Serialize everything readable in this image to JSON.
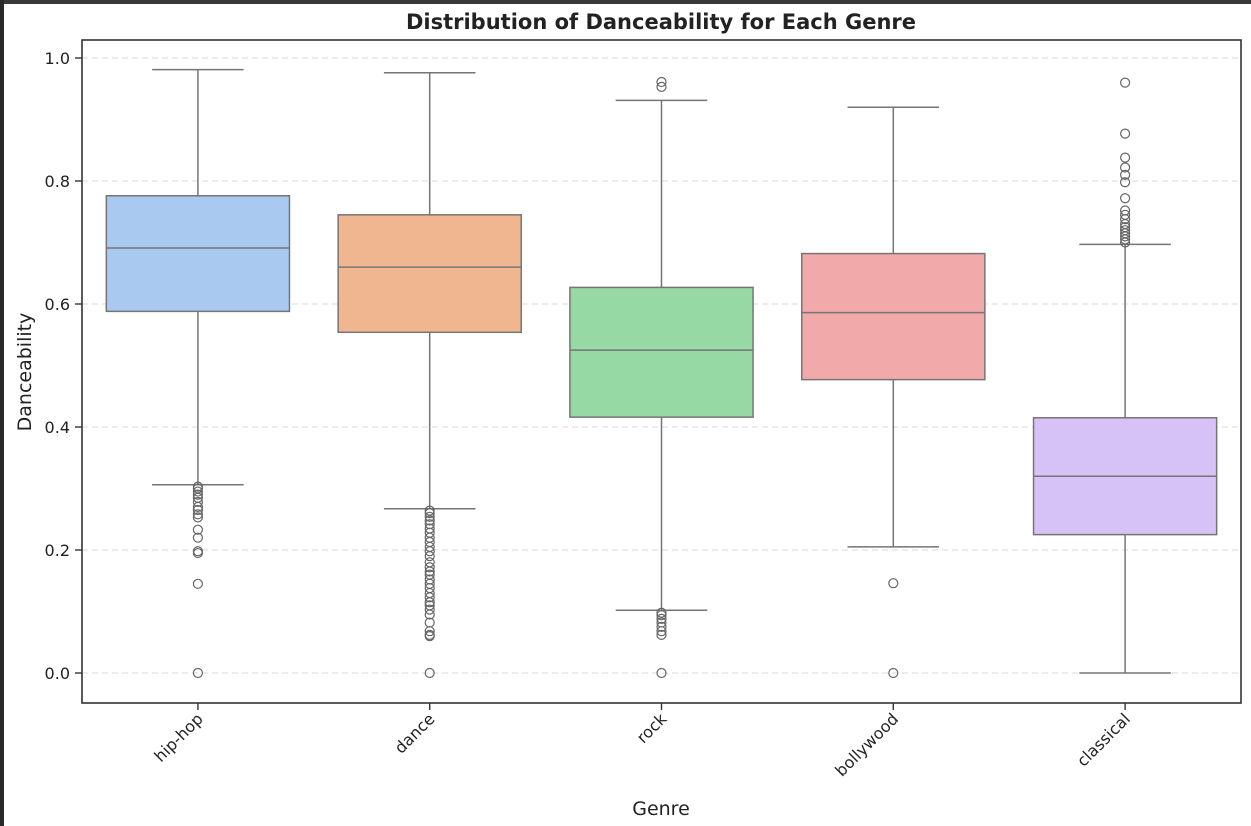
{
  "chart_data": {
    "type": "box",
    "title": "Distribution of Danceability for Each Genre",
    "xlabel": "Genre",
    "ylabel": "Danceability",
    "ylim": [
      -0.05,
      1.03
    ],
    "yticks": [
      0.0,
      0.2,
      0.4,
      0.6,
      0.8,
      1.0
    ],
    "ytick_labels": [
      "0.0",
      "0.2",
      "0.4",
      "0.6",
      "0.8",
      "1.0"
    ],
    "grid": "y-dashed",
    "categories": [
      "hip-hop",
      "dance",
      "rock",
      "bollywood",
      "classical"
    ],
    "colors": [
      "#a9c9f0",
      "#f0b690",
      "#97d9a5",
      "#f2a9a9",
      "#d6c2f7"
    ],
    "boxes": [
      {
        "category": "hip-hop",
        "whisker_low": 0.306,
        "q1": 0.588,
        "median": 0.691,
        "q3": 0.776,
        "whisker_high": 0.981,
        "fliers": [
          0.0,
          0.145,
          0.195,
          0.198,
          0.22,
          0.233,
          0.253,
          0.258,
          0.265,
          0.27,
          0.278,
          0.285,
          0.29,
          0.295,
          0.3,
          0.303
        ]
      },
      {
        "category": "dance",
        "whisker_low": 0.267,
        "q1": 0.554,
        "median": 0.66,
        "q3": 0.745,
        "whisker_high": 0.976,
        "fliers": [
          0.0,
          0.06,
          0.062,
          0.068,
          0.082,
          0.095,
          0.103,
          0.11,
          0.115,
          0.123,
          0.13,
          0.138,
          0.145,
          0.152,
          0.16,
          0.165,
          0.172,
          0.18,
          0.19,
          0.198,
          0.205,
          0.213,
          0.22,
          0.228,
          0.235,
          0.242,
          0.248,
          0.254,
          0.26,
          0.264
        ]
      },
      {
        "category": "rock",
        "whisker_low": 0.102,
        "q1": 0.416,
        "median": 0.525,
        "q3": 0.627,
        "whisker_high": 0.931,
        "fliers": [
          0.0,
          0.062,
          0.068,
          0.075,
          0.082,
          0.088,
          0.094,
          0.098,
          0.953,
          0.961
        ]
      },
      {
        "category": "bollywood",
        "whisker_low": 0.205,
        "q1": 0.477,
        "median": 0.586,
        "q3": 0.682,
        "whisker_high": 0.92,
        "fliers": [
          0.0,
          0.146
        ]
      },
      {
        "category": "classical",
        "whisker_low": 0.0,
        "q1": 0.225,
        "median": 0.32,
        "q3": 0.415,
        "whisker_high": 0.697,
        "fliers": [
          0.7,
          0.705,
          0.71,
          0.715,
          0.72,
          0.725,
          0.73,
          0.738,
          0.745,
          0.752,
          0.772,
          0.798,
          0.81,
          0.822,
          0.838,
          0.877,
          0.96
        ]
      }
    ]
  }
}
